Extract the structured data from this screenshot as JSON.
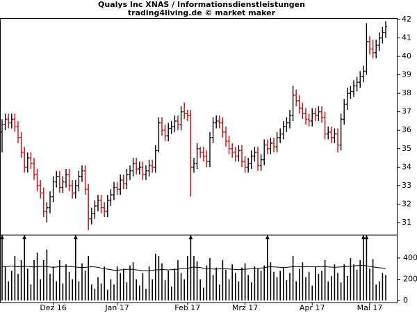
{
  "chart_data": {
    "type": "ohlc",
    "title": "Qualys Inc XNAS / Informationsdienstleistungen",
    "subtitle": "trading4living.de © market maker",
    "categories": [
      null,
      null,
      null,
      null,
      null,
      null,
      null,
      null,
      null,
      null,
      null,
      null,
      null,
      null,
      null,
      null,
      "Dez 16",
      null,
      null,
      null,
      null,
      null,
      null,
      null,
      null,
      null,
      null,
      null,
      null,
      null,
      null,
      null,
      null,
      null,
      null,
      null,
      "Jan 17",
      null,
      null,
      null,
      null,
      null,
      null,
      null,
      null,
      null,
      null,
      null,
      null,
      null,
      null,
      null,
      null,
      null,
      null,
      null,
      null,
      null,
      "Feb 17",
      null,
      null,
      null,
      null,
      null,
      null,
      null,
      null,
      null,
      null,
      null,
      null,
      null,
      null,
      null,
      null,
      null,
      "Mrz 17",
      null,
      null,
      null,
      null,
      null,
      null,
      null,
      null,
      null,
      null,
      null,
      null,
      null,
      null,
      null,
      null,
      null,
      null,
      null,
      null,
      "Apr 17",
      null,
      null,
      null,
      null,
      null,
      null,
      null,
      null,
      null,
      null,
      null,
      null,
      null,
      null,
      null,
      null,
      null,
      "Mai 17",
      null,
      null,
      null,
      null,
      null
    ],
    "open": [
      35.9,
      36.3,
      36.6,
      36.4,
      36.6,
      36.2,
      35.6,
      34.8,
      34.0,
      34.5,
      34.2,
      33.6,
      33.0,
      32.6,
      31.6,
      31.8,
      32.4,
      33.2,
      33.5,
      32.9,
      33.2,
      33.6,
      33.0,
      32.6,
      33.0,
      33.5,
      33.8,
      32.8,
      31.2,
      31.5,
      31.9,
      32.2,
      31.8,
      31.6,
      32.2,
      32.5,
      32.9,
      32.8,
      33.3,
      33.1,
      33.6,
      33.8,
      34.2,
      33.9,
      34.0,
      33.6,
      33.8,
      34.1,
      34.0,
      34.9,
      36.4,
      36.0,
      35.7,
      36.1,
      36.2,
      36.5,
      36.3,
      37.0,
      36.9,
      36.8,
      34.0,
      34.2,
      35.0,
      34.8,
      34.6,
      34.3,
      35.6,
      36.4,
      36.5,
      36.4,
      35.9,
      35.4,
      35.0,
      34.8,
      34.6,
      34.9,
      34.3,
      34.0,
      34.2,
      34.6,
      34.8,
      34.1,
      34.4,
      35.2,
      35.0,
      35.3,
      35.1,
      35.6,
      35.8,
      36.2,
      36.4,
      36.8,
      37.9,
      37.6,
      37.2,
      36.9,
      36.6,
      36.5,
      36.9,
      36.8,
      37.0,
      36.7,
      35.8,
      35.9,
      35.6,
      35.8,
      35.2,
      36.6,
      37.4,
      38.0,
      38.1,
      38.4,
      38.6,
      38.9,
      39.2,
      40.8,
      40.4,
      40.2,
      40.6,
      41.0,
      41.3
    ],
    "high": [
      36.6,
      36.9,
      36.9,
      36.9,
      36.9,
      36.5,
      35.9,
      35.1,
      34.8,
      34.8,
      34.5,
      33.9,
      33.3,
      32.9,
      32.1,
      32.7,
      33.5,
      33.8,
      33.8,
      33.5,
      33.9,
      33.9,
      33.3,
      33.3,
      33.8,
      34.1,
      34.1,
      33.1,
      31.8,
      32.2,
      32.5,
      32.5,
      32.1,
      32.5,
      32.8,
      33.2,
      33.2,
      33.6,
      33.6,
      33.9,
      34.1,
      34.5,
      34.5,
      34.3,
      34.3,
      34.1,
      34.4,
      34.4,
      35.2,
      36.7,
      36.7,
      36.3,
      36.4,
      36.5,
      36.8,
      36.8,
      37.3,
      37.5,
      37.1,
      37.1,
      34.5,
      35.3,
      35.1,
      35.1,
      34.9,
      35.9,
      36.7,
      36.8,
      36.8,
      36.7,
      36.2,
      35.7,
      35.3,
      35.1,
      35.2,
      35.2,
      34.6,
      34.5,
      34.9,
      35.1,
      35.1,
      34.7,
      35.5,
      35.5,
      35.6,
      35.6,
      35.9,
      36.1,
      36.5,
      36.7,
      37.1,
      38.4,
      38.2,
      37.9,
      37.5,
      37.2,
      36.9,
      37.2,
      37.2,
      37.3,
      37.3,
      37.0,
      36.2,
      36.2,
      36.1,
      36.1,
      36.9,
      37.7,
      38.3,
      38.4,
      38.7,
      38.9,
      39.2,
      39.5,
      41.8,
      41.1,
      40.9,
      40.9,
      41.3,
      41.6,
      41.9
    ],
    "low": [
      34.8,
      36.0,
      36.1,
      36.1,
      35.9,
      35.3,
      34.5,
      33.7,
      33.7,
      33.9,
      33.3,
      32.7,
      32.3,
      31.3,
      31.0,
      31.5,
      32.1,
      32.9,
      32.6,
      32.6,
      32.9,
      32.7,
      32.3,
      32.3,
      32.7,
      33.2,
      32.5,
      30.6,
      30.9,
      31.2,
      31.6,
      31.5,
      31.3,
      31.3,
      31.9,
      32.2,
      32.5,
      32.5,
      32.8,
      32.8,
      33.3,
      33.5,
      33.6,
      33.6,
      33.3,
      33.3,
      33.5,
      33.7,
      33.7,
      34.8,
      35.7,
      35.4,
      35.4,
      35.8,
      35.9,
      36.0,
      36.0,
      36.6,
      36.5,
      32.4,
      33.7,
      33.9,
      34.5,
      34.3,
      34.0,
      34.0,
      35.3,
      36.1,
      36.1,
      35.6,
      35.1,
      34.7,
      34.5,
      34.3,
      34.3,
      34.0,
      33.7,
      33.7,
      33.9,
      34.3,
      33.8,
      33.8,
      34.1,
      34.7,
      34.7,
      34.8,
      34.8,
      35.3,
      35.5,
      35.9,
      36.1,
      36.5,
      37.3,
      36.9,
      36.6,
      36.3,
      36.2,
      36.2,
      36.5,
      36.5,
      36.4,
      35.5,
      35.5,
      35.3,
      35.3,
      34.8,
      34.9,
      36.3,
      37.1,
      37.7,
      37.8,
      38.1,
      38.3,
      38.6,
      39.0,
      40.1,
      39.9,
      39.9,
      40.3,
      40.7,
      41.0
    ],
    "close": [
      36.3,
      36.6,
      36.4,
      36.6,
      36.2,
      35.6,
      34.8,
      34.0,
      34.5,
      34.2,
      33.6,
      33.0,
      32.6,
      31.6,
      31.8,
      32.4,
      33.2,
      33.5,
      32.9,
      33.2,
      33.6,
      33.0,
      32.6,
      33.0,
      33.5,
      33.8,
      32.8,
      31.2,
      31.5,
      31.9,
      32.2,
      31.8,
      31.6,
      32.2,
      32.5,
      32.9,
      32.8,
      33.3,
      33.1,
      33.6,
      33.8,
      34.2,
      33.9,
      34.0,
      33.6,
      33.8,
      34.1,
      34.0,
      34.9,
      36.4,
      36.0,
      35.7,
      36.1,
      36.2,
      36.5,
      36.3,
      37.0,
      36.9,
      36.8,
      34.0,
      34.2,
      35.0,
      34.8,
      34.6,
      34.3,
      35.6,
      36.4,
      36.5,
      36.4,
      35.9,
      35.4,
      35.0,
      34.8,
      34.6,
      34.9,
      34.3,
      34.0,
      34.2,
      34.6,
      34.8,
      34.1,
      34.4,
      35.2,
      35.0,
      35.3,
      35.1,
      35.6,
      35.8,
      36.2,
      36.4,
      36.8,
      37.9,
      37.6,
      37.2,
      36.9,
      36.6,
      36.5,
      36.9,
      36.8,
      37.0,
      36.7,
      35.8,
      35.9,
      35.6,
      35.8,
      35.2,
      36.6,
      37.4,
      38.0,
      38.1,
      38.4,
      38.6,
      38.9,
      39.2,
      40.8,
      40.4,
      40.2,
      40.6,
      41.0,
      41.3,
      41.6
    ],
    "up_color": "#000000",
    "down_color": "#e00000",
    "ylim": [
      30.32,
      42.3
    ],
    "yticks": [
      31,
      32,
      33,
      34,
      35,
      36,
      37,
      38,
      39,
      40,
      41,
      42
    ],
    "volume": {
      "values": [
        750,
        320,
        180,
        280,
        420,
        250,
        380,
        800,
        300,
        150,
        380,
        450,
        200,
        380,
        480,
        250,
        320,
        180,
        380,
        160,
        340,
        270,
        200,
        850,
        180,
        350,
        280,
        420,
        150,
        110,
        220,
        160,
        320,
        100,
        200,
        150,
        320,
        260,
        300,
        170,
        330,
        360,
        200,
        140,
        260,
        110,
        320,
        200,
        440,
        420,
        350,
        190,
        280,
        130,
        300,
        380,
        260,
        200,
        420,
        900,
        420,
        370,
        200,
        120,
        330,
        400,
        240,
        310,
        150,
        380,
        290,
        200,
        340,
        260,
        180,
        310,
        350,
        240,
        170,
        320,
        300,
        280,
        330,
        820,
        360,
        270,
        220,
        280,
        310,
        190,
        260,
        420,
        180,
        300,
        360,
        220,
        270,
        140,
        320,
        250,
        280,
        380,
        180,
        230,
        340,
        260,
        170,
        340,
        230,
        400,
        340,
        290,
        380,
        720,
        650,
        300,
        390,
        150,
        180,
        260,
        240
      ],
      "color": "#000000",
      "ma_values": [
        320,
        318,
        322,
        325,
        320,
        318,
        316,
        320,
        322,
        318,
        315,
        318,
        320,
        322,
        318,
        315,
        312,
        315,
        318,
        320,
        322,
        320,
        318,
        315,
        312,
        310,
        312,
        315,
        318,
        316,
        312,
        305,
        300,
        295,
        290,
        285,
        285,
        288,
        290,
        292,
        295,
        292,
        288,
        285,
        282,
        280,
        282,
        285,
        288,
        290,
        292,
        290,
        288,
        290,
        292,
        295,
        298,
        300,
        302,
        310,
        315,
        312,
        310,
        305,
        300,
        298,
        296,
        295,
        298,
        300,
        298,
        296,
        294,
        292,
        290,
        292,
        294,
        296,
        298,
        300,
        302,
        305,
        308,
        315,
        318,
        316,
        314,
        312,
        310,
        312,
        315,
        318,
        320,
        318,
        316,
        318,
        320,
        318,
        316,
        318,
        320,
        318,
        316,
        314,
        312,
        314,
        316,
        318,
        320,
        322,
        325,
        328,
        330,
        332,
        325,
        320,
        316,
        312,
        308,
        305,
        302
      ],
      "ma_color": "#000000",
      "ylim": [
        -20,
        616
      ],
      "yticks": [
        0,
        200,
        400
      ]
    }
  }
}
